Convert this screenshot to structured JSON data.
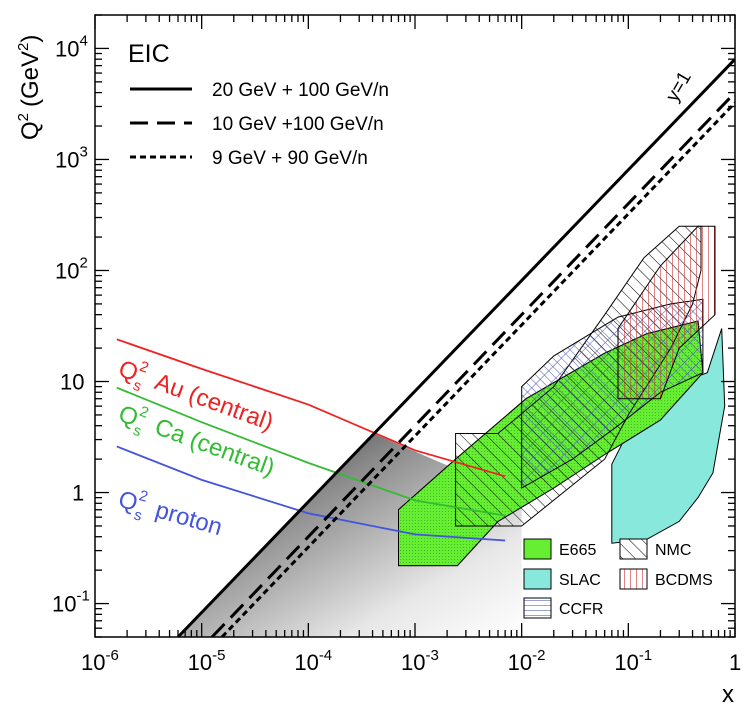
{
  "chart_data": {
    "type": "line",
    "title": "EIC",
    "xlabel": "x",
    "ylabel": "Q2 (GeV2)",
    "ylabel_parts": {
      "main": "Q",
      "sup": "2",
      "unit": "(GeV",
      "unit_sup": "2",
      "unit_close": ")"
    },
    "xscale": "log",
    "yscale": "log",
    "xlim": [
      1e-06,
      1
    ],
    "ylim": [
      0.05,
      20000
    ],
    "x_ticks": [
      {
        "base": "10",
        "exp": "-6",
        "value": 1e-06
      },
      {
        "base": "10",
        "exp": "-5",
        "value": 1e-05
      },
      {
        "base": "10",
        "exp": "-4",
        "value": 0.0001
      },
      {
        "base": "10",
        "exp": "-3",
        "value": 0.001
      },
      {
        "base": "10",
        "exp": "-2",
        "value": 0.01
      },
      {
        "base": "10",
        "exp": "-1",
        "value": 0.1
      },
      {
        "base": "1",
        "exp": "",
        "value": 1
      }
    ],
    "y_ticks": [
      {
        "base": "10",
        "exp": "-1",
        "value": 0.1
      },
      {
        "base": "1",
        "exp": "",
        "value": 1
      },
      {
        "base": "10",
        "exp": "",
        "value": 10
      },
      {
        "base": "10",
        "exp": "2",
        "value": 100
      },
      {
        "base": "10",
        "exp": "3",
        "value": 1000
      },
      {
        "base": "10",
        "exp": "4",
        "value": 10000
      }
    ],
    "kinematic_limits": [
      {
        "name": "20 GeV + 100 GeV/n",
        "style": "solid",
        "s": 8000,
        "points": [
          [
            6e-06,
            0.05
          ],
          [
            1,
            8000
          ]
        ]
      },
      {
        "name": "10 GeV +100 GeV/n",
        "style": "dashed",
        "s": 4000,
        "points": [
          [
            1.25e-05,
            0.05
          ],
          [
            1,
            4000
          ]
        ]
      },
      {
        "name": "9 GeV + 90 GeV/n",
        "style": "dotted",
        "s": 3240,
        "points": [
          [
            1.55e-05,
            0.05
          ],
          [
            1,
            3240
          ]
        ]
      }
    ],
    "y_equals_1_label": "y=1",
    "saturation_curves": [
      {
        "name": "Au (central)",
        "color": "#ee2222",
        "points": [
          [
            1.6e-06,
            24
          ],
          [
            1e-05,
            13
          ],
          [
            0.0001,
            6.2
          ],
          [
            0.001,
            2.4
          ],
          [
            0.007,
            1.4
          ]
        ]
      },
      {
        "name": "Ca (central)",
        "color": "#33bb33",
        "points": [
          [
            1.6e-06,
            8.8
          ],
          [
            1e-05,
            4.3
          ],
          [
            0.0001,
            1.85
          ],
          [
            0.001,
            0.85
          ],
          [
            0.007,
            0.62
          ]
        ]
      },
      {
        "name": "proton",
        "color": "#4455dd",
        "points": [
          [
            1.6e-06,
            2.6
          ],
          [
            1e-05,
            1.3
          ],
          [
            0.0001,
            0.65
          ],
          [
            0.001,
            0.42
          ],
          [
            0.007,
            0.37
          ]
        ]
      }
    ],
    "curve_labels": [
      {
        "prefix": "Q",
        "sup": "2",
        "sub": "s",
        "text": "Au (central)",
        "color": "#ee2222"
      },
      {
        "prefix": "Q",
        "sup": "2",
        "sub": "s",
        "text": "Ca (central)",
        "color": "#33bb33"
      },
      {
        "prefix": "Q",
        "sup": "2",
        "sub": "s",
        "text": "proton",
        "color": "#4455dd"
      }
    ],
    "experiments": [
      {
        "name": "SLAC",
        "fill": "#88e8dc",
        "pattern": "solid",
        "points": [
          [
            0.07,
            0.35
          ],
          [
            0.07,
            1.8
          ],
          [
            0.12,
            5
          ],
          [
            0.33,
            10
          ],
          [
            0.55,
            12
          ],
          [
            0.75,
            30
          ],
          [
            0.8,
            6
          ],
          [
            0.62,
            1.5
          ],
          [
            0.45,
            0.9
          ],
          [
            0.3,
            0.55
          ],
          [
            0.15,
            0.38
          ]
        ]
      },
      {
        "name": "E665",
        "fill": "#66ee33",
        "pattern": "dots",
        "points": [
          [
            0.0007,
            0.22
          ],
          [
            0.0007,
            0.7
          ],
          [
            0.0024,
            2
          ],
          [
            0.011,
            7
          ],
          [
            0.06,
            18
          ],
          [
            0.15,
            27
          ],
          [
            0.45,
            35
          ],
          [
            0.5,
            12
          ],
          [
            0.2,
            4.5
          ],
          [
            0.06,
            2.2
          ],
          [
            0.02,
            1.1
          ],
          [
            0.006,
            0.55
          ],
          [
            0.0025,
            0.22
          ]
        ]
      },
      {
        "name": "NMC",
        "fill": "none",
        "pattern": "diag",
        "points": [
          [
            0.0024,
            0.5
          ],
          [
            0.0024,
            3.4
          ],
          [
            0.006,
            3.4
          ],
          [
            0.02,
            9
          ],
          [
            0.06,
            40
          ],
          [
            0.14,
            130
          ],
          [
            0.3,
            250
          ],
          [
            0.48,
            250
          ],
          [
            0.48,
            100
          ],
          [
            0.4,
            50
          ],
          [
            0.25,
            20
          ],
          [
            0.1,
            5
          ],
          [
            0.06,
            2
          ],
          [
            0.01,
            0.5
          ]
        ]
      },
      {
        "name": "CCFR",
        "fill": "none",
        "pattern": "hgrid",
        "points": [
          [
            0.01,
            1.1
          ],
          [
            0.01,
            9
          ],
          [
            0.02,
            17
          ],
          [
            0.08,
            38
          ],
          [
            0.25,
            50
          ],
          [
            0.5,
            55
          ],
          [
            0.5,
            12
          ],
          [
            0.2,
            8
          ],
          [
            0.08,
            4
          ],
          [
            0.03,
            2
          ]
        ]
      },
      {
        "name": "BCDMS",
        "fill": "#ffffff",
        "pattern": "vlines",
        "points": [
          [
            0.08,
            7
          ],
          [
            0.08,
            30
          ],
          [
            0.2,
            110
          ],
          [
            0.45,
            250
          ],
          [
            0.65,
            250
          ],
          [
            0.65,
            40
          ],
          [
            0.3,
            20
          ],
          [
            0.2,
            7
          ]
        ]
      }
    ],
    "legend_lines": [
      {
        "label": "20 GeV + 100 GeV/n",
        "style": "solid"
      },
      {
        "label": "10 GeV +100 GeV/n",
        "style": "dashed"
      },
      {
        "label": "9 GeV + 90 GeV/n",
        "style": "dotted"
      }
    ],
    "legend_experiments": [
      {
        "label": "E665",
        "fill": "#66ee33",
        "pattern": "dots"
      },
      {
        "label": "NMC",
        "fill": "#ffffff",
        "pattern": "diag"
      },
      {
        "label": "SLAC",
        "fill": "#88e8dc",
        "pattern": "solid"
      },
      {
        "label": "BCDMS",
        "fill": "#ffffff",
        "pattern": "vlines"
      },
      {
        "label": "CCFR",
        "fill": "#ffffff",
        "pattern": "hgrid"
      }
    ],
    "colors": {
      "axis": "#000000",
      "shade_dark": "#222222",
      "shade_light": "#ffffff"
    }
  }
}
